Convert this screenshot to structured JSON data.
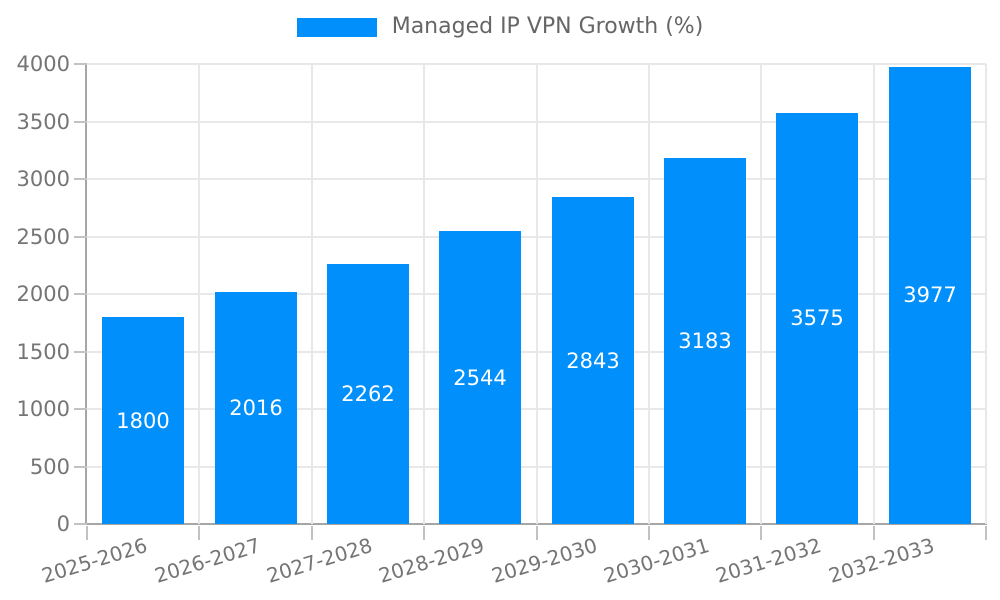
{
  "chart_data": {
    "type": "bar",
    "title": "",
    "legend": "Managed IP VPN Growth (%)",
    "legend_position": "top",
    "categories": [
      "2025-2026",
      "2026-2027",
      "2027-2028",
      "2028-2029",
      "2029-2030",
      "2030-2031",
      "2031-2032",
      "2032-2033"
    ],
    "values": [
      1800,
      2016,
      2262,
      2544,
      2843,
      3183,
      3575,
      3977
    ],
    "value_labels_shown": true,
    "xlabel": "",
    "ylabel": "",
    "ylim": [
      0,
      4000
    ],
    "yticks": [
      0,
      500,
      1000,
      1500,
      2000,
      2500,
      3000,
      3500,
      4000
    ],
    "grid": true,
    "x_label_rotation_deg": -17,
    "colors": {
      "bar": "#008FFB",
      "value_label": "#FFFFFF",
      "axis": "#A6A6A6",
      "grid": "#E8E8E8",
      "tick": "#C2C2C2",
      "text": "#757575",
      "legend_text": "#666666",
      "background": "#FFFFFF"
    }
  }
}
